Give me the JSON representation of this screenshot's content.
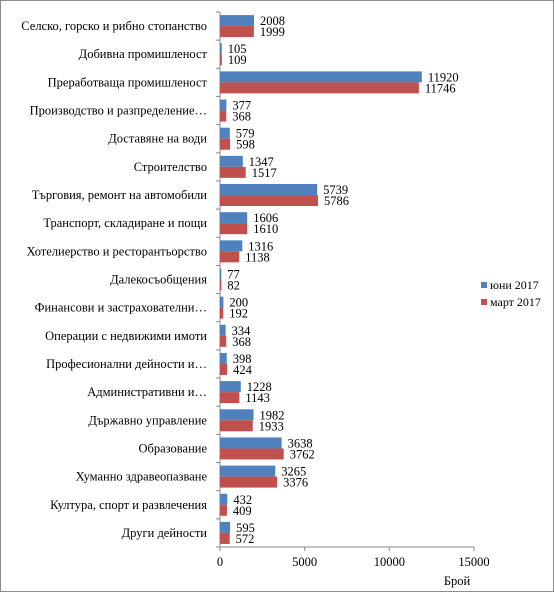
{
  "chart_data": {
    "type": "bar",
    "orientation": "horizontal",
    "categories": [
      "Селско, горско и рибно стопанство",
      "Добивна промишленост",
      "Преработваща промишленост",
      "Производство и разпределение…",
      "Доставяне на води",
      "Строителство",
      "Търговия, ремонт на автомобили",
      "Транспорт, складиране и пощи",
      "Хотелиерство и ресторантьорство",
      "Далекосъобщения",
      "Финансови и застрахователни…",
      "Операции с недвижими имоти",
      "Професионални дейности и…",
      "Административни и…",
      "Държавно управление",
      "Образование",
      "Хуманно здравеопазване",
      "Култура,  спорт и развлечения",
      "Други дейности"
    ],
    "series": [
      {
        "name": "юни 2017",
        "color": "#4f81bd",
        "values": [
          2008,
          105,
          11920,
          377,
          579,
          1347,
          5739,
          1606,
          1316,
          77,
          200,
          334,
          398,
          1228,
          1982,
          3638,
          3265,
          432,
          595
        ]
      },
      {
        "name": "март 2017",
        "color": "#c0504d",
        "values": [
          1999,
          109,
          11746,
          368,
          598,
          1517,
          5786,
          1610,
          1138,
          82,
          192,
          368,
          424,
          1143,
          1933,
          3762,
          3376,
          409,
          572
        ]
      }
    ],
    "xlabel": "Брой",
    "xlim": [
      0,
      15000
    ],
    "xticks": [
      0,
      5000,
      10000,
      15000
    ],
    "grid": false,
    "legend_position": "right"
  }
}
